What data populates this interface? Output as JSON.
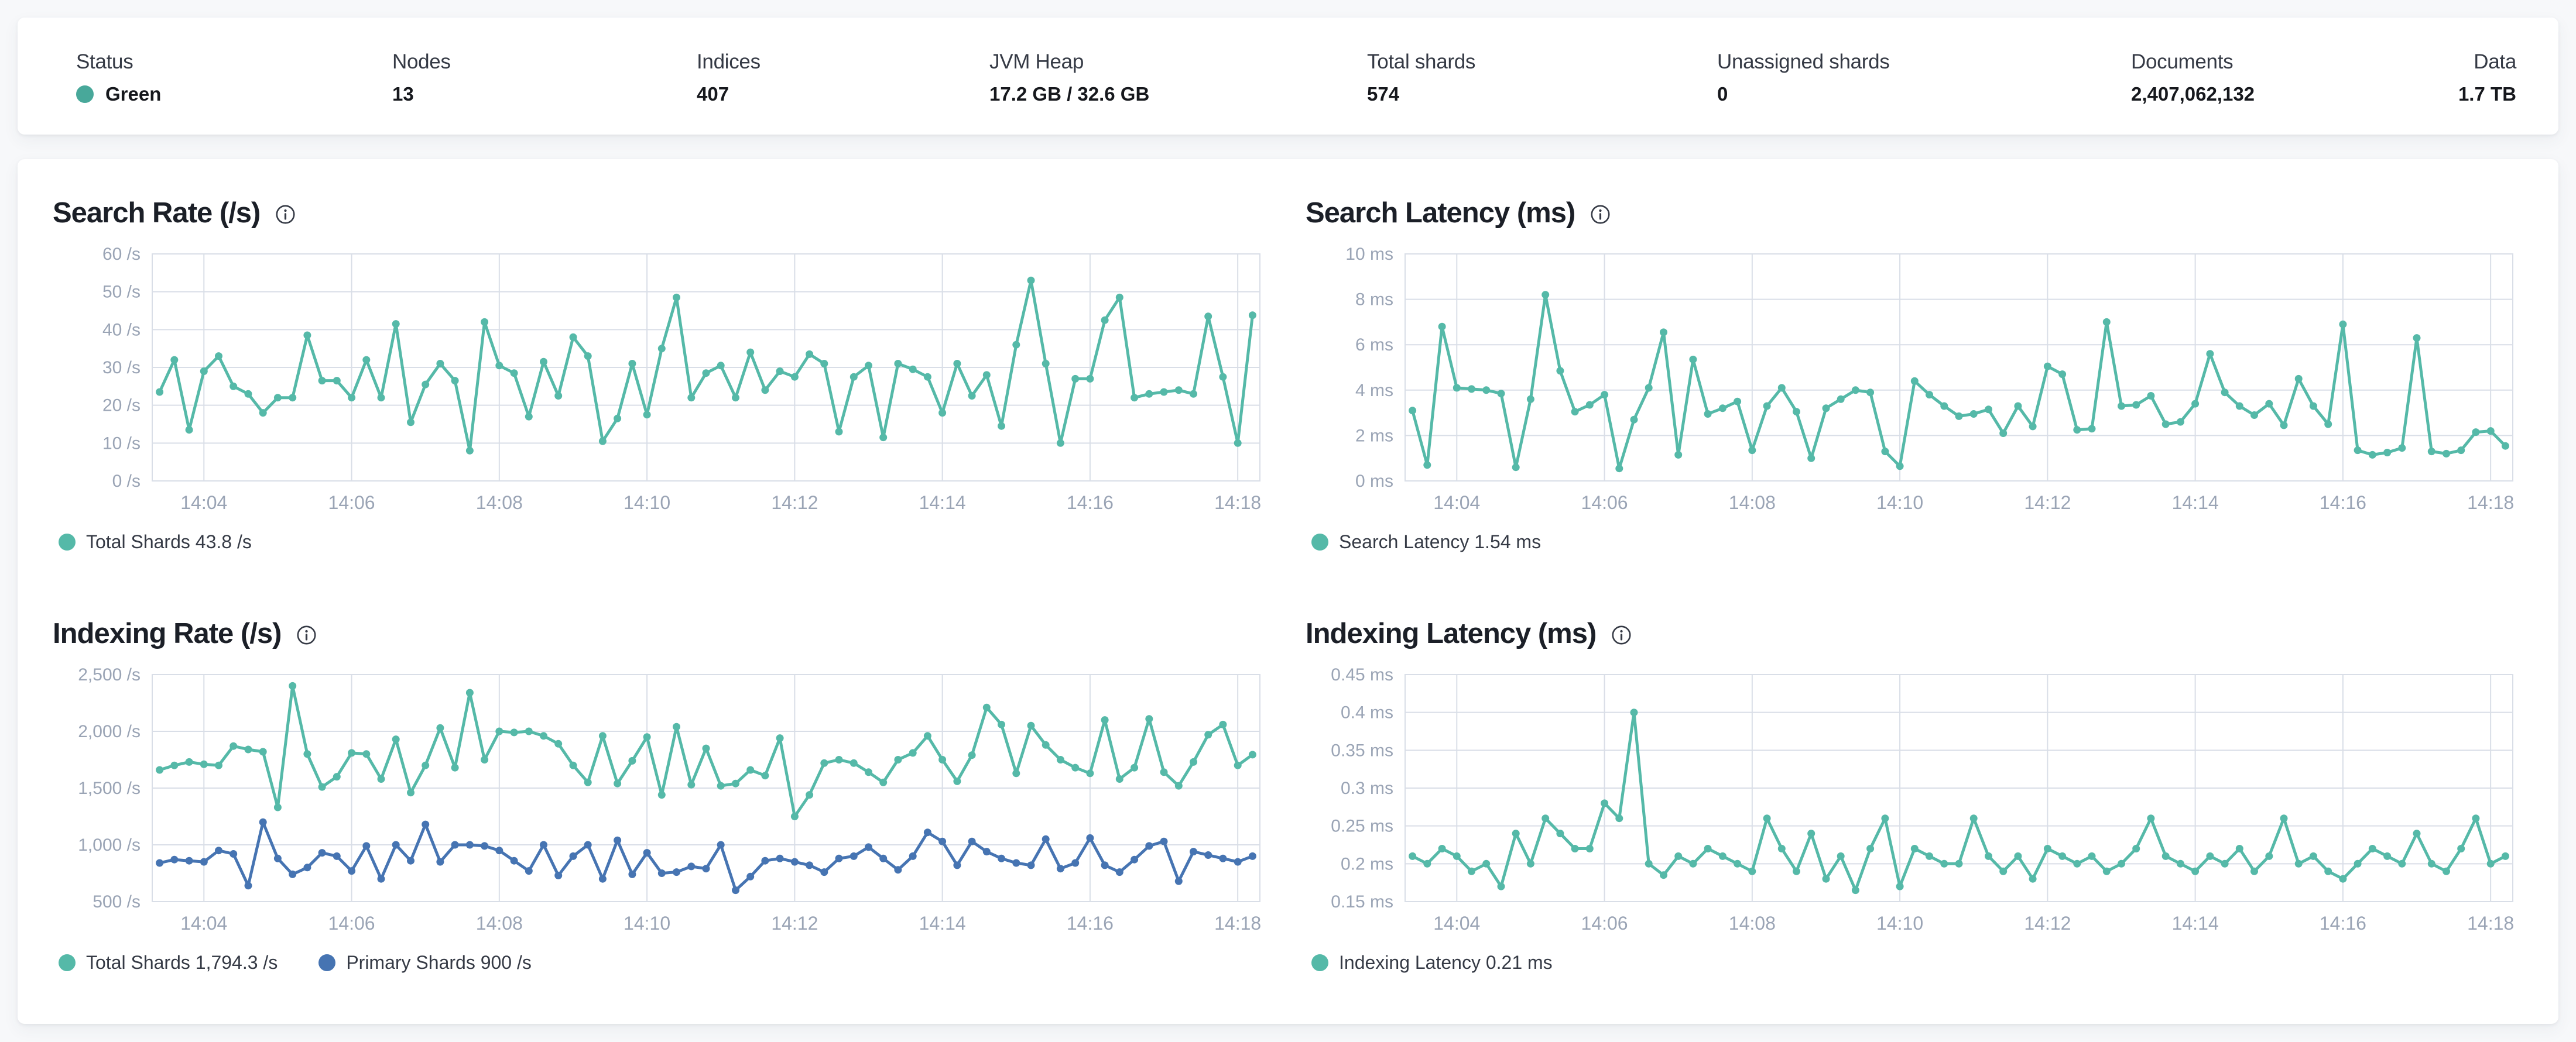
{
  "colors": {
    "teal": "#55b9a8",
    "blue": "#4674b2",
    "status_green": "#48a89a",
    "grid": "#d9dee7",
    "axis_text": "#9aa4b5",
    "title_text": "#1b1f27",
    "legend_text": "#353a45"
  },
  "header": {
    "stats": {
      "status": {
        "label": "Status",
        "value": "Green"
      },
      "nodes": {
        "label": "Nodes",
        "value": "13"
      },
      "indices": {
        "label": "Indices",
        "value": "407"
      },
      "jvm_heap": {
        "label": "JVM Heap",
        "value": "17.2 GB / 32.6 GB"
      },
      "total_shards": {
        "label": "Total shards",
        "value": "574"
      },
      "unassigned_shards": {
        "label": "Unassigned shards",
        "value": "0"
      },
      "documents": {
        "label": "Documents",
        "value": "2,407,062,132"
      },
      "data": {
        "label": "Data",
        "value": "1.7 TB"
      }
    }
  },
  "chart_data": [
    {
      "type": "line",
      "title": "Search Rate (/s)",
      "ylabel": "/s",
      "y_min": 0,
      "y_max": 60,
      "y_ticks": [
        {
          "v": 60,
          "label": "60 /s"
        },
        {
          "v": 50,
          "label": "50 /s"
        },
        {
          "v": 40,
          "label": "40 /s"
        },
        {
          "v": 30,
          "label": "30 /s"
        },
        {
          "v": 20,
          "label": "20 /s"
        },
        {
          "v": 10,
          "label": "10 /s"
        },
        {
          "v": 0,
          "label": "0 /s"
        }
      ],
      "x_ticks": [
        {
          "i": 3,
          "label": "14:04"
        },
        {
          "i": 13,
          "label": "14:06"
        },
        {
          "i": 23,
          "label": "14:08"
        },
        {
          "i": 33,
          "label": "14:10"
        },
        {
          "i": 43,
          "label": "14:12"
        },
        {
          "i": 53,
          "label": "14:14"
        },
        {
          "i": 63,
          "label": "14:16"
        },
        {
          "i": 73,
          "label": "14:18"
        }
      ],
      "series": [
        {
          "name": "Total Shards",
          "color": "#55b9a8",
          "values": [
            23.5,
            32,
            13.5,
            29,
            33,
            25,
            23,
            18,
            22,
            22,
            38.5,
            26.5,
            26.5,
            22,
            32,
            22,
            41.5,
            15.5,
            25.5,
            31,
            26.5,
            8,
            42,
            30.5,
            28.5,
            17,
            31.5,
            22.5,
            38,
            33,
            10.5,
            16.5,
            31,
            17.5,
            35,
            48.5,
            22,
            28.5,
            30.5,
            22,
            34,
            24,
            29,
            27.5,
            33.5,
            31,
            13,
            27.5,
            30.5,
            11.5,
            31,
            29.5,
            27.5,
            18,
            31,
            22.5,
            28,
            14.5,
            36,
            53,
            31,
            10,
            27,
            27,
            42.5,
            48.5,
            22,
            23,
            23.5,
            24,
            23,
            43.5,
            27.5,
            10,
            43.8
          ]
        }
      ],
      "legend": [
        {
          "label": "Total Shards 43.8 /s",
          "color": "#55b9a8"
        }
      ]
    },
    {
      "type": "line",
      "title": "Search Latency (ms)",
      "ylabel": "ms",
      "y_min": 0,
      "y_max": 10,
      "y_ticks": [
        {
          "v": 10,
          "label": "10 ms"
        },
        {
          "v": 8,
          "label": "8 ms"
        },
        {
          "v": 6,
          "label": "6 ms"
        },
        {
          "v": 4,
          "label": "4 ms"
        },
        {
          "v": 2,
          "label": "2 ms"
        },
        {
          "v": 0,
          "label": "0 ms"
        }
      ],
      "x_ticks": [
        {
          "i": 3,
          "label": "14:04"
        },
        {
          "i": 13,
          "label": "14:06"
        },
        {
          "i": 23,
          "label": "14:08"
        },
        {
          "i": 33,
          "label": "14:10"
        },
        {
          "i": 43,
          "label": "14:12"
        },
        {
          "i": 53,
          "label": "14:14"
        },
        {
          "i": 63,
          "label": "14:16"
        },
        {
          "i": 73,
          "label": "14:18"
        }
      ],
      "series": [
        {
          "name": "Search Latency",
          "color": "#55b9a8",
          "values": [
            3.1,
            0.7,
            6.8,
            4.1,
            4.05,
            4.0,
            3.85,
            0.6,
            3.6,
            8.2,
            4.85,
            3.05,
            3.35,
            3.8,
            0.55,
            2.7,
            4.1,
            6.55,
            1.15,
            5.35,
            2.95,
            3.2,
            3.5,
            1.35,
            3.3,
            4.1,
            3.05,
            1.0,
            3.2,
            3.6,
            4.0,
            3.9,
            1.3,
            0.65,
            4.4,
            3.8,
            3.3,
            2.85,
            2.95,
            3.15,
            2.1,
            3.3,
            2.4,
            5.05,
            4.7,
            2.25,
            2.3,
            7.0,
            3.3,
            3.35,
            3.75,
            2.5,
            2.6,
            3.4,
            5.6,
            3.9,
            3.3,
            2.9,
            3.4,
            2.45,
            4.5,
            3.3,
            2.5,
            6.9,
            1.35,
            1.15,
            1.25,
            1.45,
            6.3,
            1.3,
            1.2,
            1.35,
            2.15,
            2.2,
            1.54
          ]
        }
      ],
      "legend": [
        {
          "label": "Search Latency 1.54 ms",
          "color": "#55b9a8"
        }
      ]
    },
    {
      "type": "line",
      "title": "Indexing Rate (/s)",
      "ylabel": "/s",
      "y_min": 500,
      "y_max": 2500,
      "y_ticks": [
        {
          "v": 2500,
          "label": "2,500 /s"
        },
        {
          "v": 2000,
          "label": "2,000 /s"
        },
        {
          "v": 1500,
          "label": "1,500 /s"
        },
        {
          "v": 1000,
          "label": "1,000 /s"
        },
        {
          "v": 500,
          "label": "500 /s"
        }
      ],
      "x_ticks": [
        {
          "i": 3,
          "label": "14:04"
        },
        {
          "i": 13,
          "label": "14:06"
        },
        {
          "i": 23,
          "label": "14:08"
        },
        {
          "i": 33,
          "label": "14:10"
        },
        {
          "i": 43,
          "label": "14:12"
        },
        {
          "i": 53,
          "label": "14:14"
        },
        {
          "i": 63,
          "label": "14:16"
        },
        {
          "i": 73,
          "label": "14:18"
        }
      ],
      "series": [
        {
          "name": "Total Shards",
          "color": "#55b9a8",
          "values": [
            1660,
            1700,
            1730,
            1710,
            1700,
            1870,
            1840,
            1820,
            1330,
            2400,
            1800,
            1510,
            1600,
            1810,
            1800,
            1580,
            1930,
            1460,
            1700,
            2030,
            1680,
            2340,
            1750,
            2000,
            1990,
            2000,
            1960,
            1890,
            1700,
            1550,
            1960,
            1540,
            1740,
            1950,
            1440,
            2040,
            1530,
            1850,
            1520,
            1540,
            1660,
            1610,
            1940,
            1250,
            1440,
            1720,
            1750,
            1720,
            1640,
            1550,
            1750,
            1810,
            1960,
            1750,
            1560,
            1790,
            2210,
            2060,
            1630,
            2050,
            1880,
            1750,
            1680,
            1630,
            2100,
            1580,
            1680,
            2110,
            1640,
            1520,
            1730,
            1970,
            2060,
            1700,
            1794.3
          ]
        },
        {
          "name": "Primary Shards",
          "color": "#4674b2",
          "values": [
            840,
            870,
            860,
            850,
            950,
            920,
            640,
            1200,
            880,
            740,
            800,
            930,
            900,
            770,
            990,
            700,
            1000,
            860,
            1180,
            850,
            1000,
            1000,
            990,
            950,
            860,
            770,
            1000,
            730,
            900,
            1000,
            700,
            1040,
            740,
            930,
            750,
            760,
            810,
            790,
            1000,
            600,
            720,
            860,
            880,
            850,
            820,
            760,
            880,
            900,
            980,
            880,
            780,
            900,
            1110,
            1030,
            820,
            1030,
            940,
            880,
            840,
            820,
            1050,
            790,
            840,
            1060,
            820,
            760,
            870,
            990,
            1030,
            680,
            940,
            910,
            880,
            850,
            900
          ]
        }
      ],
      "legend": [
        {
          "label": "Total Shards 1,794.3 /s",
          "color": "#55b9a8"
        },
        {
          "label": "Primary Shards 900 /s",
          "color": "#4674b2"
        }
      ]
    },
    {
      "type": "line",
      "title": "Indexing Latency (ms)",
      "ylabel": "ms",
      "y_min": 0.15,
      "y_max": 0.45,
      "y_ticks": [
        {
          "v": 0.45,
          "label": "0.45 ms"
        },
        {
          "v": 0.4,
          "label": "0.4 ms"
        },
        {
          "v": 0.35,
          "label": "0.35 ms"
        },
        {
          "v": 0.3,
          "label": "0.3 ms"
        },
        {
          "v": 0.25,
          "label": "0.25 ms"
        },
        {
          "v": 0.2,
          "label": "0.2 ms"
        },
        {
          "v": 0.15,
          "label": "0.15 ms"
        }
      ],
      "x_ticks": [
        {
          "i": 3,
          "label": "14:04"
        },
        {
          "i": 13,
          "label": "14:06"
        },
        {
          "i": 23,
          "label": "14:08"
        },
        {
          "i": 33,
          "label": "14:10"
        },
        {
          "i": 43,
          "label": "14:12"
        },
        {
          "i": 53,
          "label": "14:14"
        },
        {
          "i": 63,
          "label": "14:16"
        },
        {
          "i": 73,
          "label": "14:18"
        }
      ],
      "series": [
        {
          "name": "Indexing Latency",
          "color": "#55b9a8",
          "values": [
            0.21,
            0.2,
            0.22,
            0.21,
            0.19,
            0.2,
            0.17,
            0.24,
            0.2,
            0.26,
            0.24,
            0.22,
            0.22,
            0.28,
            0.26,
            0.4,
            0.2,
            0.185,
            0.21,
            0.2,
            0.22,
            0.21,
            0.2,
            0.19,
            0.26,
            0.22,
            0.19,
            0.24,
            0.18,
            0.21,
            0.165,
            0.22,
            0.26,
            0.17,
            0.22,
            0.21,
            0.2,
            0.2,
            0.26,
            0.21,
            0.19,
            0.21,
            0.18,
            0.22,
            0.21,
            0.2,
            0.21,
            0.19,
            0.2,
            0.22,
            0.26,
            0.21,
            0.2,
            0.19,
            0.21,
            0.2,
            0.22,
            0.19,
            0.21,
            0.26,
            0.2,
            0.21,
            0.19,
            0.18,
            0.2,
            0.22,
            0.21,
            0.2,
            0.24,
            0.2,
            0.19,
            0.22,
            0.26,
            0.2,
            0.21
          ]
        }
      ],
      "legend": [
        {
          "label": "Indexing Latency 0.21 ms",
          "color": "#55b9a8"
        }
      ]
    }
  ]
}
